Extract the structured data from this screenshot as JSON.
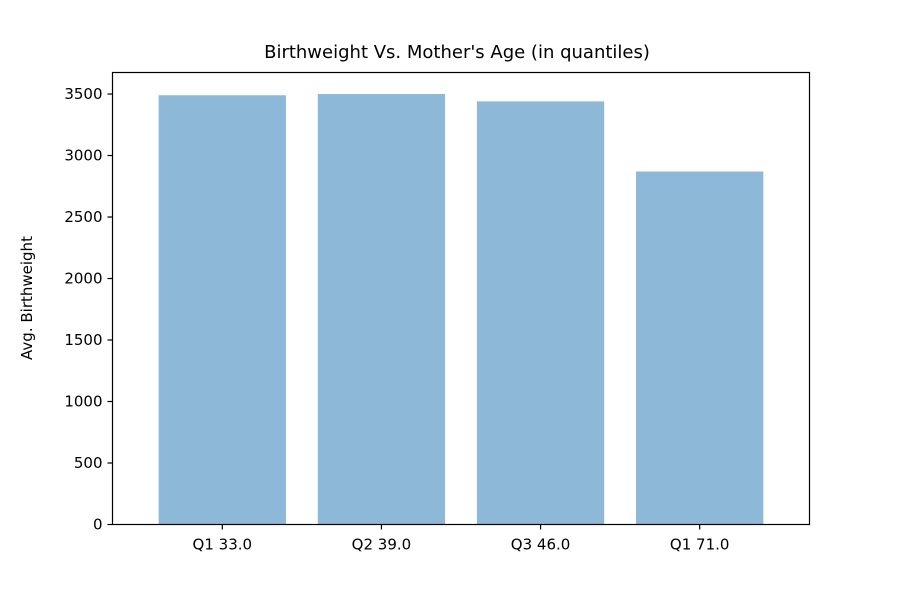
{
  "chart_data": {
    "type": "bar",
    "title": "Birthweight Vs. Mother's Age (in quantiles)",
    "xlabel": "",
    "ylabel": "Avg. Birthweight",
    "categories": [
      "Q1 33.0",
      "Q2 39.0",
      "Q3 46.0",
      "Q1 71.0"
    ],
    "values": [
      3490,
      3500,
      3440,
      2870
    ],
    "ylim": [
      0,
      3675
    ],
    "yticks": [
      0,
      500,
      1000,
      1500,
      2000,
      2500,
      3000,
      3500
    ],
    "bar_color": "#8eb8d8",
    "grid": false,
    "legend": "none"
  }
}
